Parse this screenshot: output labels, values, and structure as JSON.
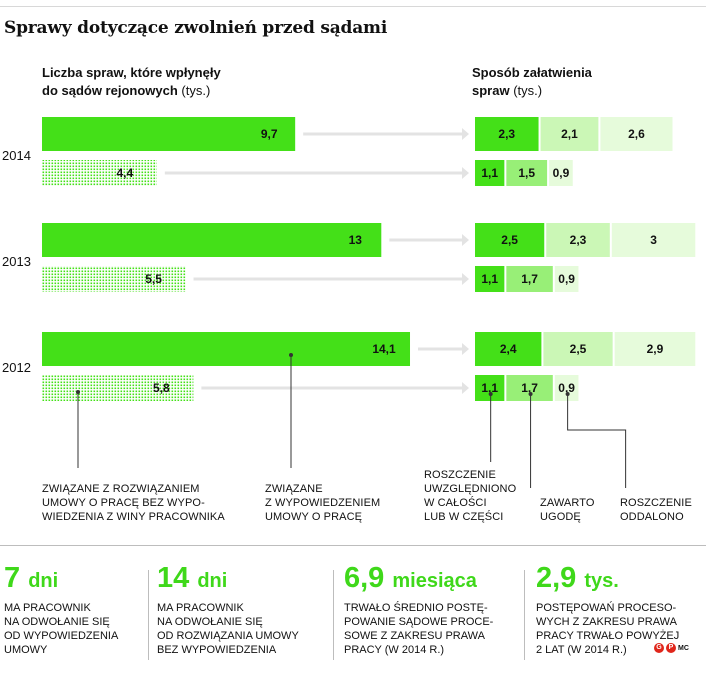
{
  "title": "Sprawy dotyczące zwolnień przed sądami",
  "left_header": {
    "line1": "Liczba spraw, które wpłynęły",
    "line2": "do sądów rejonowych",
    "unit": "(tys.)"
  },
  "right_header": {
    "line1": "Sposób załatwienia",
    "line2": "spraw",
    "unit": "(tys.)"
  },
  "colors": {
    "bright": "#44e018",
    "mid": "#98ef77",
    "light": "#cbf7b6",
    "lighter": "#e6fbdb",
    "arrow": "#e3e3e3",
    "dotted": "#44e018"
  },
  "chart_data": {
    "type": "bar",
    "years": [
      "2014",
      "2013",
      "2012"
    ],
    "incoming": [
      {
        "year": "2014",
        "regular": 9.7,
        "regular_label": "9,7",
        "dismissal_notice": 4.4,
        "dismissal_notice_label": "4,4"
      },
      {
        "year": "2013",
        "regular": 13,
        "regular_label": "13",
        "dismissal_notice": 5.5,
        "dismissal_notice_label": "5,5"
      },
      {
        "year": "2012",
        "regular": 14.1,
        "regular_label": "14,1",
        "dismissal_notice": 5.8,
        "dismissal_notice_label": "5,8"
      }
    ],
    "resolution": [
      {
        "year": "2014",
        "top": [
          {
            "value": 2.3,
            "label": "2,3"
          },
          {
            "value": 2.1,
            "label": "2,1"
          },
          {
            "value": 2.6,
            "label": "2,6"
          }
        ],
        "bottom": [
          {
            "value": 1.1,
            "label": "1,1"
          },
          {
            "value": 1.5,
            "label": "1,5"
          },
          {
            "value": 0.9,
            "label": "0,9"
          }
        ]
      },
      {
        "year": "2013",
        "top": [
          {
            "value": 2.5,
            "label": "2,5"
          },
          {
            "value": 2.3,
            "label": "2,3"
          },
          {
            "value": 3,
            "label": "3"
          }
        ],
        "bottom": [
          {
            "value": 1.1,
            "label": "1,1"
          },
          {
            "value": 1.7,
            "label": "1,7"
          },
          {
            "value": 0.9,
            "label": "0,9"
          }
        ]
      },
      {
        "year": "2012",
        "top": [
          {
            "value": 2.4,
            "label": "2,4"
          },
          {
            "value": 2.5,
            "label": "2,5"
          },
          {
            "value": 2.9,
            "label": "2,9"
          }
        ],
        "bottom": [
          {
            "value": 1.1,
            "label": "1,1"
          },
          {
            "value": 1.7,
            "label": "1,7"
          },
          {
            "value": 0.9,
            "label": "0,9"
          }
        ]
      }
    ],
    "legend": {
      "dotted": [
        "Związane z rozwiązaniem",
        "umowy o pracę bez wypo-",
        "wiedzenia z winy pracownika"
      ],
      "solid": [
        "Związane",
        "z wypowiedzeniem",
        "umowy o pracę"
      ],
      "seg1": [
        "Roszczenie",
        "uwzględniono",
        "w całości",
        "lub w części"
      ],
      "seg2": [
        "Zawarto",
        "ugodę"
      ],
      "seg3": [
        "Roszczenie",
        "oddalono"
      ]
    }
  },
  "stats": [
    {
      "big": "7",
      "unit": "dni",
      "desc": [
        "ma pracownik",
        "na odwołanie się",
        "od wypowiedzenia",
        "umowy"
      ]
    },
    {
      "big": "14",
      "unit": "dni",
      "desc": [
        "ma pracownik",
        "na odwołanie się",
        "od rozwiązania umowy",
        "bez wypowiedzenia"
      ]
    },
    {
      "big": "6,9",
      "unit": "miesiąca",
      "desc": [
        "trwało średnio postę-",
        "powanie sądowe proce-",
        "sowe z zakresu prawa",
        "pracy (w 2014 r.)"
      ]
    },
    {
      "big": "2,9",
      "unit": "tys.",
      "desc": [
        "postępowań proceso-",
        "wych z zakresu prawa",
        "pracy trwało powyżej",
        "2 lat (w 2014 r.)"
      ]
    }
  ],
  "credit": {
    "logo": "GP",
    "initials": "MC"
  }
}
